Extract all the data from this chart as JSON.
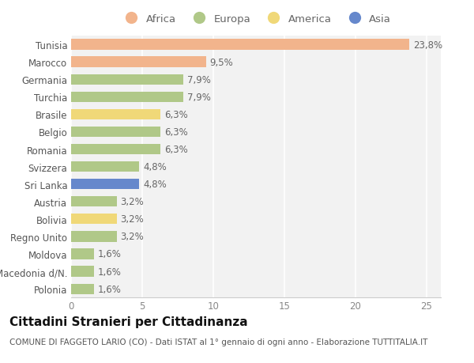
{
  "countries": [
    "Tunisia",
    "Marocco",
    "Germania",
    "Turchia",
    "Brasile",
    "Belgio",
    "Romania",
    "Svizzera",
    "Sri Lanka",
    "Austria",
    "Bolivia",
    "Regno Unito",
    "Moldova",
    "Macedonia d/N.",
    "Polonia"
  ],
  "values": [
    23.8,
    9.5,
    7.9,
    7.9,
    6.3,
    6.3,
    6.3,
    4.8,
    4.8,
    3.2,
    3.2,
    3.2,
    1.6,
    1.6,
    1.6
  ],
  "labels": [
    "23,8%",
    "9,5%",
    "7,9%",
    "7,9%",
    "6,3%",
    "6,3%",
    "6,3%",
    "4,8%",
    "4,8%",
    "3,2%",
    "3,2%",
    "3,2%",
    "1,6%",
    "1,6%",
    "1,6%"
  ],
  "continents": [
    "Africa",
    "Africa",
    "Europa",
    "Europa",
    "America",
    "Europa",
    "Europa",
    "Europa",
    "Asia",
    "Europa",
    "America",
    "Europa",
    "Europa",
    "Europa",
    "Europa"
  ],
  "continent_colors": {
    "Africa": "#F2B48C",
    "Europa": "#B0C888",
    "America": "#F0D878",
    "Asia": "#6688CC"
  },
  "legend_items": [
    "Africa",
    "Europa",
    "America",
    "Asia"
  ],
  "title": "Cittadini Stranieri per Cittadinanza",
  "subtitle": "COMUNE DI FAGGETO LARIO (CO) - Dati ISTAT al 1° gennaio di ogni anno - Elaborazione TUTTITALIA.IT",
  "xlim": [
    0,
    26
  ],
  "xticks": [
    0,
    5,
    10,
    15,
    20,
    25
  ],
  "bg_color": "#FFFFFF",
  "plot_bg_color": "#F2F2F2",
  "grid_color": "#FFFFFF",
  "bar_height": 0.6,
  "label_fontsize": 8.5,
  "title_fontsize": 11,
  "subtitle_fontsize": 7.5,
  "tick_fontsize": 8.5,
  "legend_fontsize": 9.5
}
